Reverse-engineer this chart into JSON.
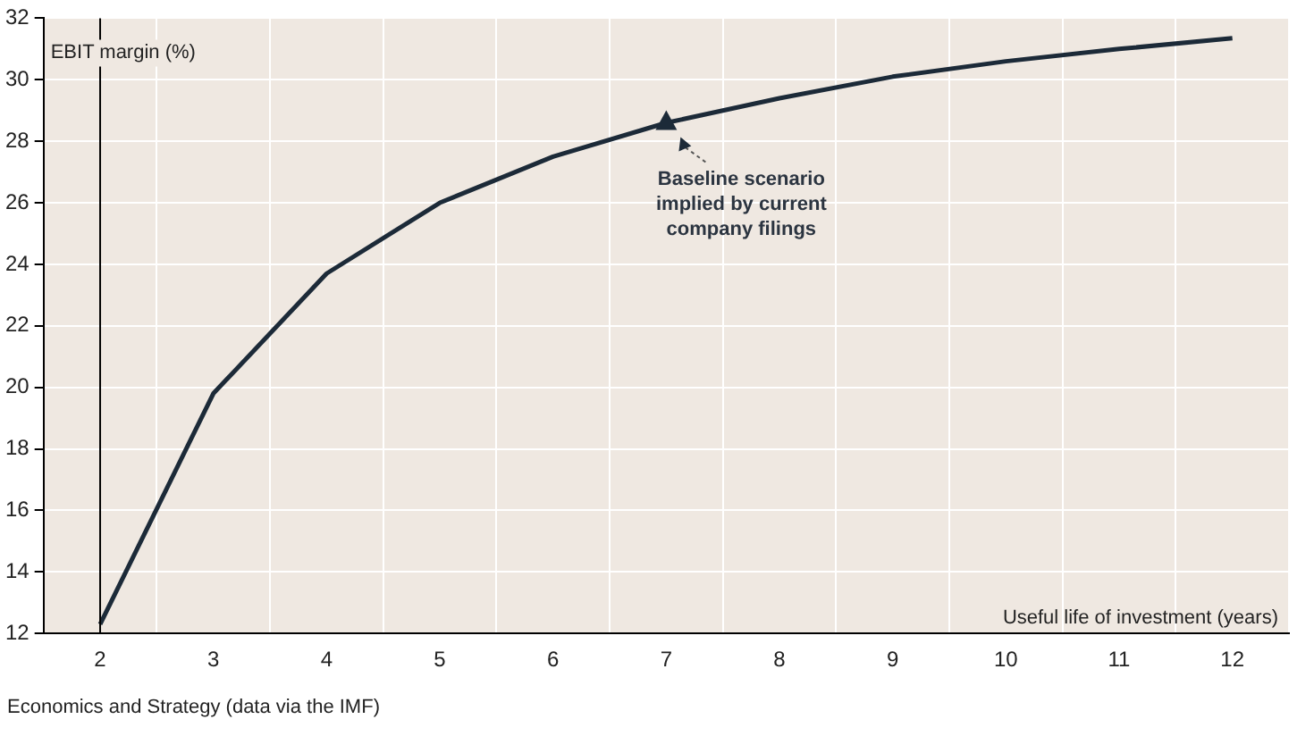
{
  "chart_data": {
    "type": "line",
    "ylabel": "EBIT margin (%)",
    "xlabel": "Useful life of investment (years)",
    "categories": [
      "2",
      "3",
      "4",
      "5",
      "6",
      "7",
      "8",
      "9",
      "10",
      "11",
      "12"
    ],
    "series": [
      {
        "color": "#1c2a38",
        "values": [
          12.3,
          19.8,
          23.7,
          26.0,
          27.5,
          28.6,
          29.4,
          30.1,
          30.6,
          31.0,
          31.35
        ]
      }
    ],
    "ylim": [
      12,
      32
    ],
    "yticks": [
      12,
      14,
      16,
      18,
      20,
      22,
      24,
      26,
      28,
      30,
      32
    ],
    "grid": true,
    "legend": false,
    "marker": "none",
    "line_style": "solid",
    "ref_lines": [
      {
        "axis": "x",
        "value": "2",
        "color": "#000000"
      }
    ],
    "annotations": [
      {
        "text": "Baseline scenario\nimplied by current\ncompany filings",
        "x": "7",
        "y": 28.6
      },
      "Economics and Strategy (data via the IMF)"
    ]
  }
}
